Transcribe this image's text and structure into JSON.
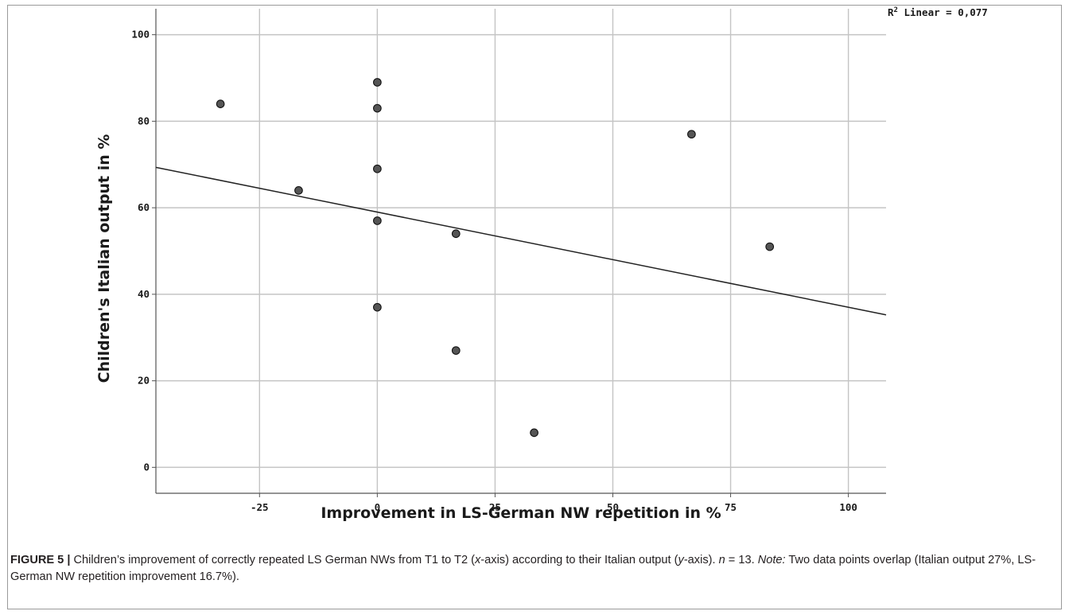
{
  "chart_data": {
    "type": "scatter",
    "xlabel": "Improvement in LS-German NW repetition in %",
    "ylabel": "Children's Italian output in %",
    "xlim": [
      -47,
      108
    ],
    "ylim": [
      -6,
      106
    ],
    "x_ticks": [
      -25,
      0,
      25,
      50,
      75,
      100
    ],
    "x_tick_labels": [
      "-25",
      "0",
      "25",
      "50",
      "75",
      "100"
    ],
    "y_ticks": [
      0,
      20,
      40,
      60,
      80,
      100
    ],
    "y_tick_labels": [
      "0",
      "20",
      "40",
      "60",
      "80",
      "100"
    ],
    "grid": true,
    "points": [
      {
        "x": -33.3,
        "y": 84
      },
      {
        "x": -16.7,
        "y": 64
      },
      {
        "x": 0,
        "y": 89
      },
      {
        "x": 0,
        "y": 83
      },
      {
        "x": 0,
        "y": 69
      },
      {
        "x": 0,
        "y": 57
      },
      {
        "x": 0,
        "y": 37
      },
      {
        "x": 16.7,
        "y": 54
      },
      {
        "x": 16.7,
        "y": 27
      },
      {
        "x": 33.3,
        "y": 8
      },
      {
        "x": 66.7,
        "y": 77
      },
      {
        "x": 83.3,
        "y": 51
      }
    ],
    "fit_line": {
      "type": "linear",
      "intercept": 59.0,
      "slope": -0.22
    },
    "annotation": {
      "prefix": "R",
      "sup": "2",
      "text": " Linear = 0,077"
    },
    "point_color": "#555555",
    "line_color": "#222222",
    "grid_color": "#c4c4c4"
  },
  "caption": {
    "label": "FIGURE 5",
    "sep": " | ",
    "text1": "Children’s improvement of correctly repeated LS German NWs from T1 to T2 (",
    "x_italic": "x",
    "text2": "-axis) according to their Italian output (",
    "y_italic": "y",
    "text3": "-axis). ",
    "n_italic": "n",
    "text4": " = 13. ",
    "note_italic": "Note:",
    "text5": " Two data points overlap (Italian output 27%, LS-German NW repetition improvement 16.7%)."
  }
}
